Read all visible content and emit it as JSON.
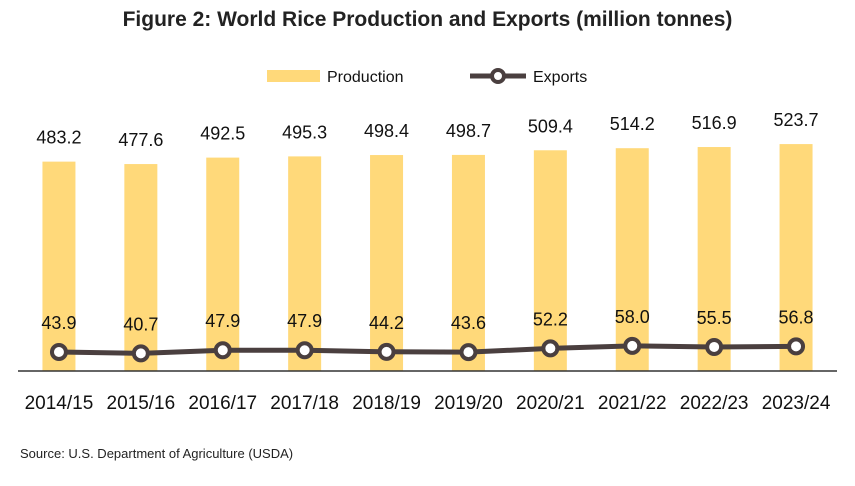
{
  "title": "Figure 2: World Rice Production and Exports (million tonnes)",
  "source": "Source: U.S. Department of Agriculture (USDA)",
  "colors": {
    "production": "#FFD97A",
    "exports": "#4A3F3F",
    "axis": "#333333"
  },
  "chart_data": {
    "type": "bar",
    "title": "Figure 2: World Rice Production and Exports (million tonnes)",
    "xlabel": "",
    "ylabel": "",
    "ylim": [
      0,
      560
    ],
    "categories": [
      "2014/15",
      "2015/16",
      "2016/17",
      "2017/18",
      "2018/19",
      "2019/20",
      "2020/21",
      "2021/22",
      "2022/23",
      "2023/24"
    ],
    "series": [
      {
        "name": "Production",
        "type": "bar",
        "values": [
          483.2,
          477.6,
          492.5,
          495.3,
          498.4,
          498.7,
          509.4,
          514.2,
          516.9,
          523.7
        ]
      },
      {
        "name": "Exports",
        "type": "line",
        "values": [
          43.9,
          40.7,
          47.9,
          47.9,
          44.2,
          43.6,
          52.2,
          58.0,
          55.5,
          56.8
        ]
      }
    ],
    "legend": "top-center",
    "grid": false
  }
}
